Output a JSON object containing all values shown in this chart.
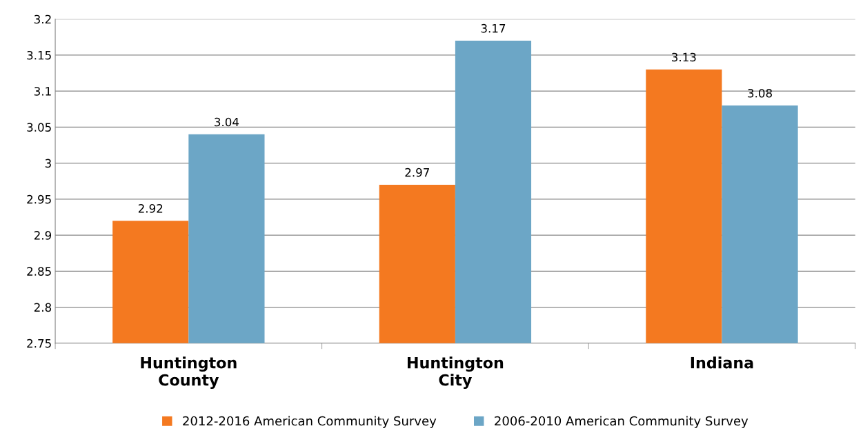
{
  "chart_data": {
    "type": "bar",
    "categories": [
      "Huntington\nCounty",
      "Huntington\nCity",
      "Indiana"
    ],
    "series": [
      {
        "name": "2012-2016 American Community Survey",
        "color": "#f47920",
        "values": [
          2.92,
          2.97,
          3.13
        ]
      },
      {
        "name": "2006-2010 American Community Survey",
        "color": "#6ca6c6",
        "values": [
          3.04,
          3.17,
          3.08
        ]
      }
    ],
    "ylim": [
      2.75,
      3.2
    ],
    "yticks": [
      2.75,
      2.8,
      2.85,
      2.9,
      2.95,
      3,
      3.05,
      3.1,
      3.15,
      3.2
    ],
    "grid": "y",
    "legend": "bottom",
    "data_labels": true
  }
}
